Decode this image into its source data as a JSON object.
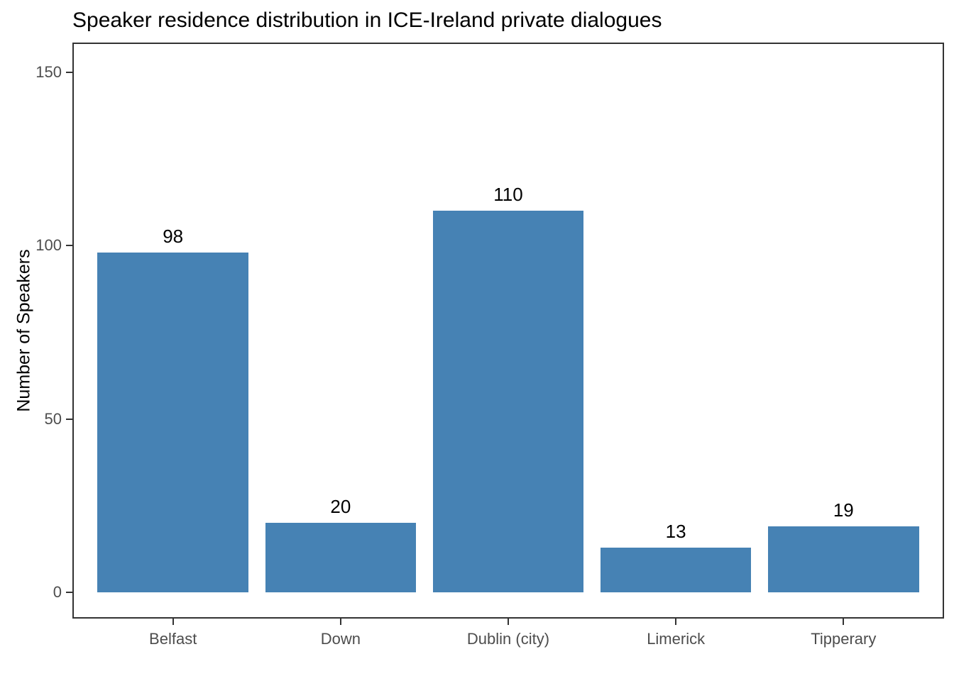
{
  "title": "Speaker residence distribution in ICE-Ireland private dialogues",
  "chart_data": {
    "type": "bar",
    "categories": [
      "Belfast",
      "Down",
      "Dublin (city)",
      "Limerick",
      "Tipperary"
    ],
    "values": [
      98,
      20,
      110,
      13,
      19
    ],
    "bar_labels": [
      "98",
      "20",
      "110",
      "13",
      "19"
    ],
    "title": "Speaker residence distribution in ICE-Ireland private dialogues",
    "xlabel": "",
    "ylabel": "Number of Speakers",
    "yticks": [
      0,
      50,
      100,
      150
    ],
    "ylim": [
      -7.5,
      158.5
    ],
    "grid": false,
    "legend": false,
    "bar_width_ratio": 0.9,
    "colors": {
      "bar": "#4682B4",
      "axis_text": "#4D4D4D",
      "axis_line": "#333333",
      "text": "#000000",
      "background": "#FFFFFF"
    }
  }
}
